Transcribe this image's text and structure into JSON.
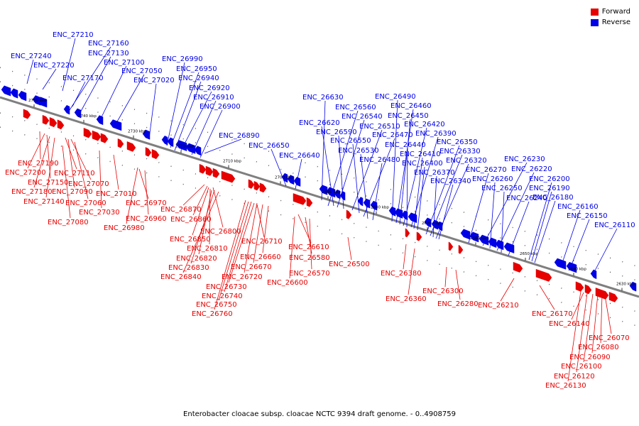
{
  "caption": "Enterobacter cloacae subsp. cloacae NCTC 9394 draft genome. - 0..4908759",
  "legend": [
    {
      "label": "Forward",
      "color": "#e60000"
    },
    {
      "label": "Reverse",
      "color": "#0000e6"
    }
  ],
  "colors": {
    "forward": "#e60000",
    "reverse": "#0000e6",
    "axis": "#7f7f7f"
  },
  "ticks": [
    "2750 kbp",
    "2740 kbp",
    "2730 kbp",
    "2720 kbp",
    "2710 kbp",
    "2700 kbp",
    "2690 kbp",
    "2680 kbp",
    "2670 kbp",
    "2660 kbp",
    "2650 kbp",
    "2640 kbp",
    "2630 kbp"
  ],
  "reverse_labels": [
    "ENC_27210",
    "ENC_27160",
    "ENC_27130",
    "ENC_27240",
    "ENC_27100",
    "ENC_27220",
    "ENC_27050",
    "ENC_27170",
    "ENC_27020",
    "ENC_26990",
    "ENC_26950",
    "ENC_26940",
    "ENC_26920",
    "ENC_26910",
    "ENC_26900",
    "ENC_26890",
    "ENC_26650",
    "ENC_26640",
    "ENC_26630",
    "ENC_26560",
    "ENC_26620",
    "ENC_26540",
    "ENC_26590",
    "ENC_26510",
    "ENC_26550",
    "ENC_26470",
    "ENC_26530",
    "ENC_26480",
    "ENC_26490",
    "ENC_26460",
    "ENC_26450",
    "ENC_26420",
    "ENC_26440",
    "ENC_26390",
    "ENC_26410",
    "ENC_26350",
    "ENC_26400",
    "ENC_26330",
    "ENC_26370",
    "ENC_26320",
    "ENC_26340",
    "ENC_26270",
    "ENC_26230",
    "ENC_26260",
    "ENC_26220",
    "ENC_26250",
    "ENC_26240",
    "ENC_26200",
    "ENC_26190",
    "ENC_26180",
    "ENC_26160",
    "ENC_26150",
    "ENC_26110"
  ],
  "forward_labels": [
    "ENC_27190",
    "ENC_27200",
    "ENC_27110",
    "ENC_27150",
    "ENC_27070",
    "ENC_27180",
    "ENC_27090",
    "ENC_27140",
    "ENC_27010",
    "ENC_27060",
    "ENC_27030",
    "ENC_27080",
    "ENC_26970",
    "ENC_26960",
    "ENC_26980",
    "ENC_26870",
    "ENC_26860",
    "ENC_26800",
    "ENC_26850",
    "ENC_26810",
    "ENC_26820",
    "ENC_26830",
    "ENC_26840",
    "ENC_26710",
    "ENC_26660",
    "ENC_26670",
    "ENC_26720",
    "ENC_26730",
    "ENC_26740",
    "ENC_26750",
    "ENC_26760",
    "ENC_26610",
    "ENC_26580",
    "ENC_26570",
    "ENC_26600",
    "ENC_26500",
    "ENC_26380",
    "ENC_26300",
    "ENC_26360",
    "ENC_26280",
    "ENC_26210",
    "ENC_26170",
    "ENC_26140",
    "ENC_26070",
    "ENC_26080",
    "ENC_26090",
    "ENC_26100",
    "ENC_26120",
    "ENC_26130"
  ]
}
